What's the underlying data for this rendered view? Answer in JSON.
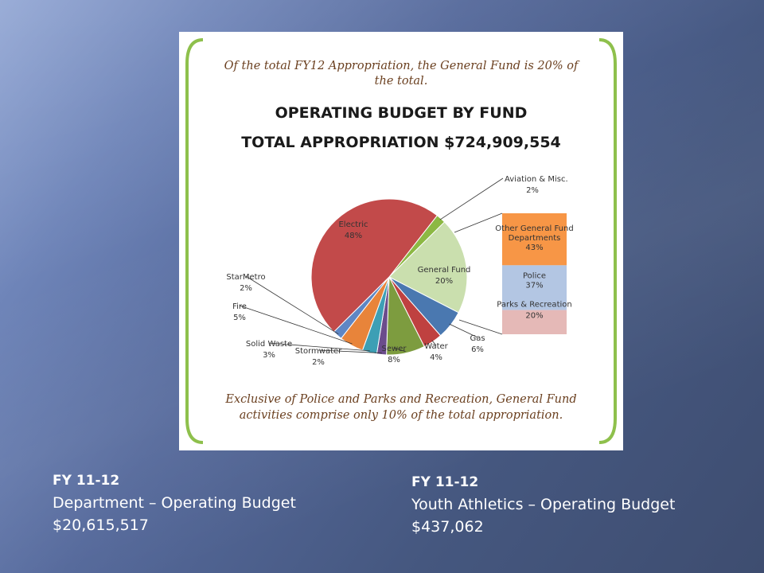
{
  "slide": {
    "caption_left": {
      "heading": "FY 11-12",
      "line1": "Department – Operating Budget",
      "line2": "$20,615,517"
    },
    "caption_right": {
      "heading": "FY 11-12",
      "line1": "Youth Athletics – Operating Budget",
      "line2": "$437,062"
    }
  },
  "chart_data": {
    "type": "pie",
    "note_top": "Of the total FY12 Appropriation, the General Fund is 20% of the total.",
    "note_top_line1": "Of the total FY12 Appropriation, the General Fund is 20% of",
    "note_top_line2": "the total.",
    "title": "OPERATING BUDGET BY FUND",
    "subtitle": "TOTAL APPROPRIATION $724,909,554",
    "note_bottom": "Exclusive of Police and Parks and Recreation, General Fund activities comprise only 10% of the total appropriation.",
    "note_bottom_line1": "Exclusive of Police and Parks and Recreation, General Fund",
    "note_bottom_line2": "activities comprise only 10% of the total appropriation.",
    "categories": [
      "Aviation & Misc.",
      "General Fund",
      "Gas",
      "Water",
      "Sewer",
      "Stormwater",
      "Solid Waste",
      "Fire",
      "StarMetro",
      "Electric"
    ],
    "values": [
      2,
      20,
      6,
      4,
      8,
      2,
      3,
      5,
      2,
      48
    ],
    "value_labels": [
      "2%",
      "20%",
      "6%",
      "4%",
      "8%",
      "2%",
      "3%",
      "5%",
      "2%",
      "48%"
    ],
    "colors": [
      "#8cb843",
      "#cadfae",
      "#4a78b0",
      "#bf4140",
      "#7d9c3f",
      "#6b4c8c",
      "#3d9fb5",
      "#e8843a",
      "#5e86c4",
      "#c24a4a"
    ],
    "breakdown": {
      "of": "General Fund",
      "categories": [
        "Other General Fund Departments",
        "Police",
        "Parks & Recreation"
      ],
      "values": [
        43,
        37,
        20
      ],
      "value_labels": [
        "43%",
        "37%",
        "20%"
      ],
      "colors": [
        "#f79646",
        "#b3c6e3",
        "#e5b9b7"
      ]
    }
  }
}
